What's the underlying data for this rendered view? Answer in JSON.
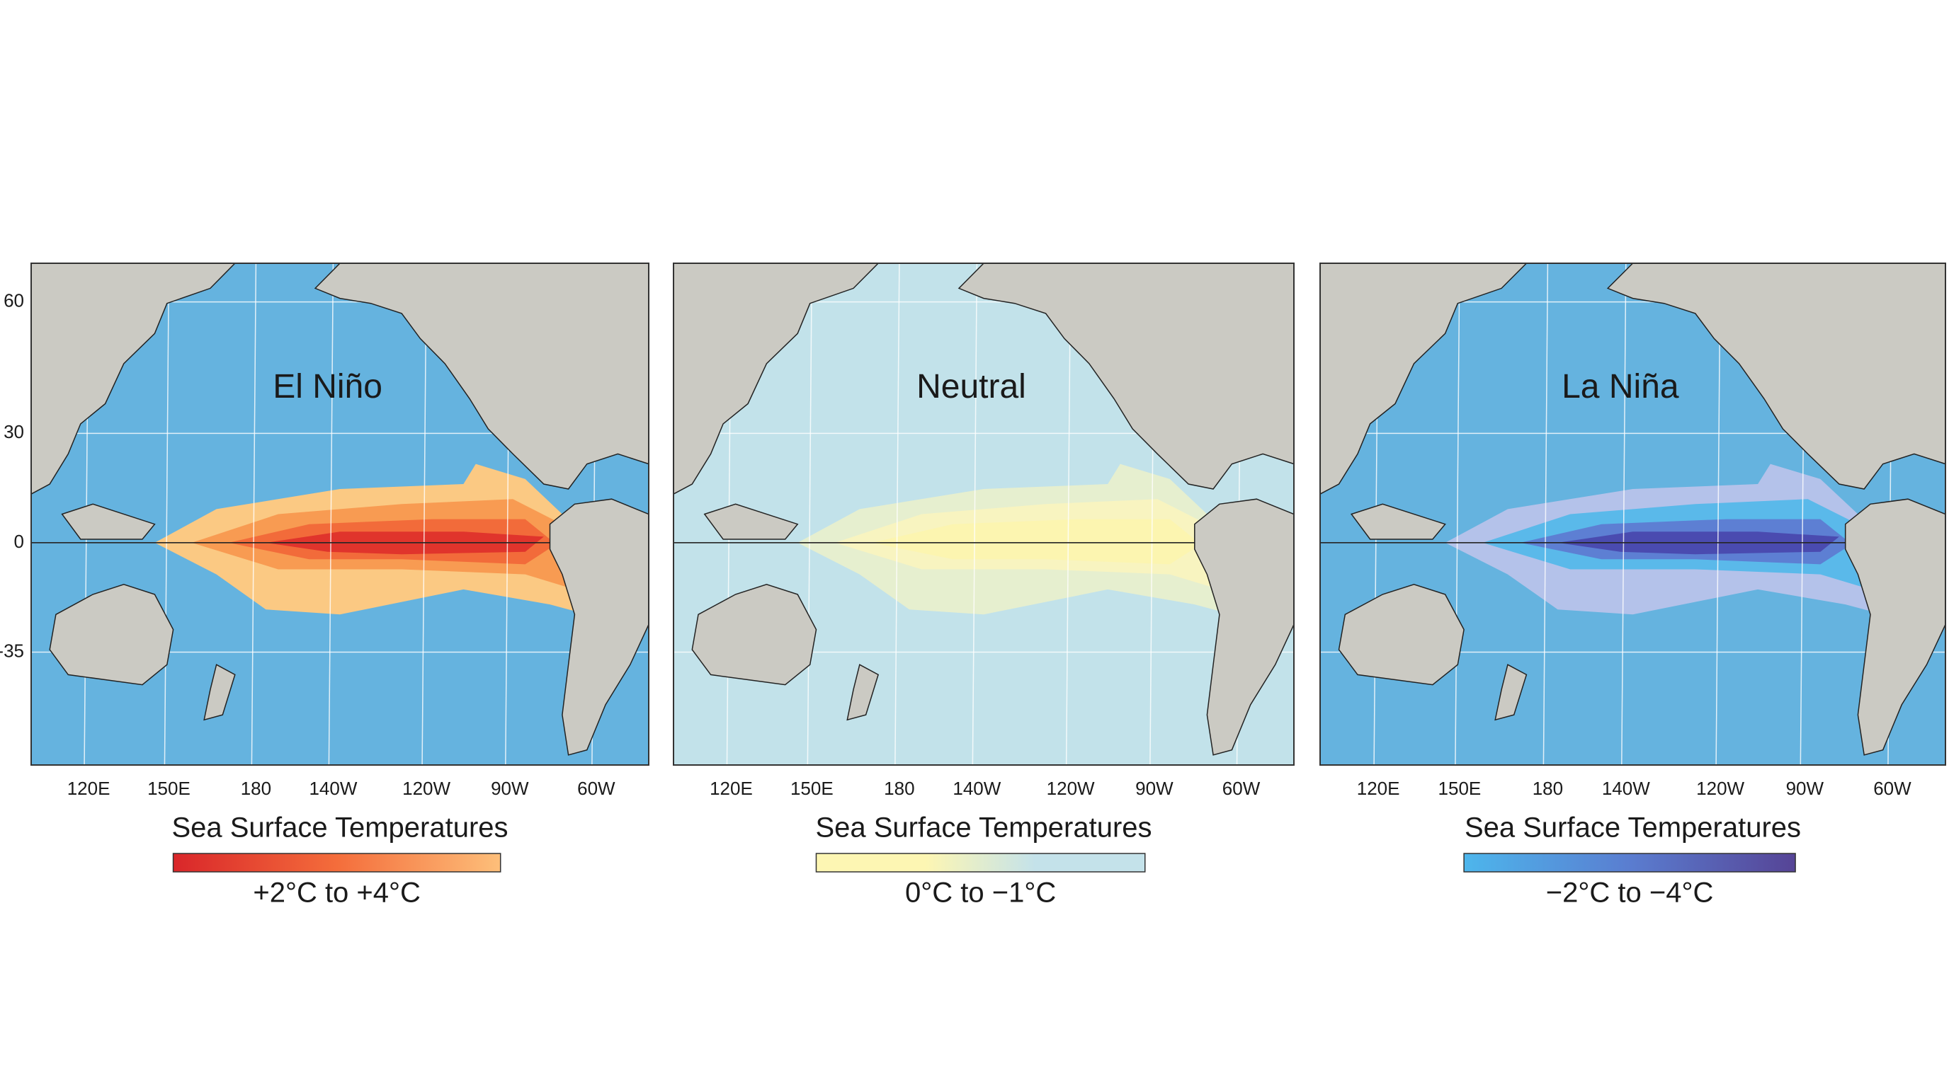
{
  "panels": [
    {
      "title": "El Niño",
      "ocean_color": "#65b3df",
      "plume_colors": [
        "#fbc983",
        "#f89b52",
        "#f26b3a",
        "#e0342c"
      ],
      "x_labels": [
        "120E",
        "150E",
        "180",
        "140W",
        "120W",
        "90W",
        "60W"
      ],
      "y_labels": [
        "60",
        "30",
        "0",
        "-35"
      ],
      "colorbar_title": "Sea Surface Temperatures",
      "colorbar_colors": [
        "#d9262a",
        "#f46d3b",
        "#fdbf7a"
      ],
      "colorbar_label": "+2°C to +4°C"
    },
    {
      "title": "Neutral",
      "ocean_color": "#c2e2ea",
      "plume_colors": [
        "#e6efcf",
        "#f8f4c0",
        "#fcf5b0"
      ],
      "x_labels": [
        "120E",
        "150E",
        "180",
        "140W",
        "120W",
        "90W",
        "60W"
      ],
      "colorbar_title": "Sea Surface Temperatures",
      "colorbar_colors": [
        "#fdf6b3",
        "#fdf6b3",
        "#c4e2ea",
        "#c4e2ea"
      ],
      "colorbar_label": "0°C to −1°C"
    },
    {
      "title": "La Niña",
      "ocean_color": "#65b3df",
      "plume_colors": [
        "#b4c2ea",
        "#5ab9ea",
        "#5d7fd3",
        "#4a4bb0"
      ],
      "x_labels": [
        "120E",
        "150E",
        "180",
        "140W",
        "120W",
        "90W",
        "60W"
      ],
      "colorbar_title": "Sea Surface Temperatures",
      "colorbar_colors": [
        "#4db6ec",
        "#5a7dd0",
        "#564496"
      ],
      "colorbar_label": "−2°C to −4°C"
    }
  ]
}
